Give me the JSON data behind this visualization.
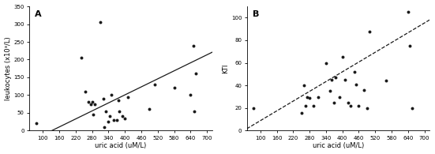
{
  "panel_A": {
    "label": "A",
    "scatter_x": [
      75,
      240,
      255,
      265,
      275,
      280,
      285,
      290,
      310,
      320,
      325,
      330,
      340,
      345,
      350,
      360,
      370,
      375,
      380,
      390,
      400,
      410,
      490,
      510,
      580,
      640,
      650,
      655,
      660
    ],
    "scatter_y": [
      20,
      205,
      110,
      80,
      75,
      80,
      45,
      75,
      305,
      90,
      10,
      55,
      25,
      40,
      100,
      30,
      30,
      85,
      55,
      40,
      35,
      95,
      60,
      130,
      120,
      100,
      240,
      55,
      160
    ],
    "reg_slope": 0.376,
    "reg_intercept": -49.67,
    "line_style": "solid",
    "xlabel": "uric acid (uM/L)",
    "ylabel": "leukocytes (x10³/L)",
    "xlim": [
      50,
      720
    ],
    "ylim": [
      0,
      350
    ],
    "xticks": [
      100,
      160,
      220,
      280,
      340,
      400,
      460,
      520,
      580,
      640,
      700
    ],
    "yticks": [
      0,
      50,
      100,
      150,
      200,
      250,
      300,
      350
    ]
  },
  "panel_B": {
    "label": "B",
    "scatter_x": [
      75,
      250,
      260,
      265,
      270,
      280,
      295,
      310,
      340,
      355,
      360,
      370,
      375,
      390,
      400,
      410,
      420,
      430,
      445,
      450,
      460,
      480,
      490,
      500,
      560,
      640,
      645,
      655
    ],
    "scatter_y": [
      20,
      16,
      40,
      22,
      30,
      29,
      22,
      30,
      60,
      35,
      45,
      25,
      47,
      30,
      65,
      45,
      25,
      22,
      52,
      41,
      22,
      36,
      20,
      88,
      44,
      105,
      75,
      20
    ],
    "reg_slope": 0.144,
    "reg_intercept": -5.52,
    "line_style": "dashed",
    "xlabel": "uric acid (uM/L)",
    "ylabel": "KTI",
    "xlim": [
      50,
      720
    ],
    "ylim": [
      0,
      110
    ],
    "xticks": [
      100,
      160,
      220,
      280,
      340,
      400,
      460,
      520,
      580,
      640,
      700
    ],
    "yticks": [
      0,
      20,
      40,
      60,
      80,
      100
    ]
  },
  "dot_color": "#1a1a1a",
  "dot_size": 8,
  "line_color": "#1a1a1a",
  "line_width": 0.9,
  "background_color": "#ffffff",
  "tick_fontsize": 5,
  "label_fontsize": 6,
  "panel_label_fontsize": 8,
  "spine_linewidth": 0.6
}
